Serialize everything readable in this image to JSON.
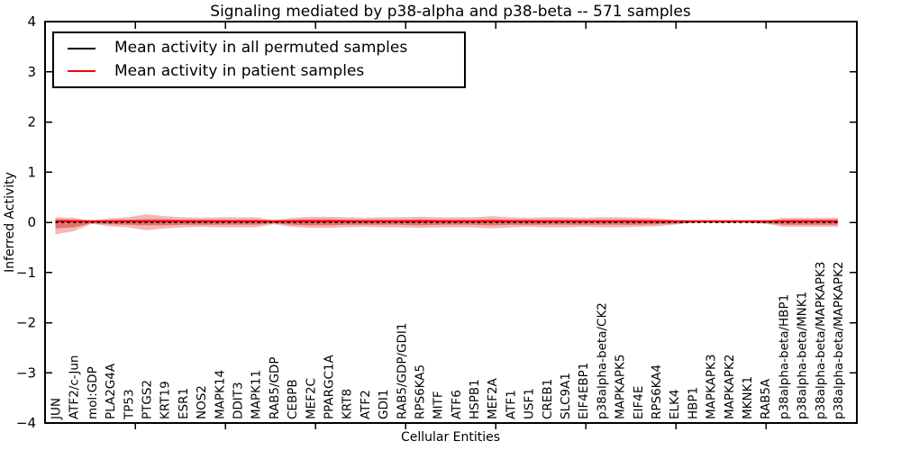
{
  "chart_data": {
    "type": "area",
    "title": "Signaling mediated by p38-alpha and p38-beta -- 571 samples",
    "xlabel": "Cellular Entities",
    "ylabel": "Inferred Activity",
    "ylim": [
      -4,
      4
    ],
    "y_ticks": [
      4,
      3,
      2,
      1,
      0,
      -1,
      -2,
      -3,
      -4
    ],
    "grid": false,
    "legend_position": "upper left",
    "colors": {
      "permuted_line": "#000000",
      "patient_line": "#ff0000",
      "outer_band": "#f5b6b6",
      "inner_band": "#e57070",
      "axis": "#000000"
    },
    "categories": [
      "JUN",
      "ATF2/c-Jun",
      "mol:GDP",
      "PLA2G4A",
      "TP53",
      "PTGS2",
      "KRT19",
      "ESR1",
      "NOS2",
      "MAPK14",
      "DDIT3",
      "MAPK11",
      "RAB5/GDP",
      "CEBPB",
      "MEF2C",
      "PPARGC1A",
      "KRT8",
      "ATF2",
      "GDI1",
      "RAB5/GDP/GDI1",
      "RPS6KA5",
      "MITF",
      "ATF6",
      "HSPB1",
      "MEF2A",
      "ATF1",
      "USF1",
      "CREB1",
      "SLC9A1",
      "EIF4EBP1",
      "p38alpha-beta/CK2",
      "MAPKAPK5",
      "EIF4E",
      "RPS6KA4",
      "ELK4",
      "HBP1",
      "MAPKAPK3",
      "MAPKAPK2",
      "MKNK1",
      "RAB5A",
      "p38alpha-beta/HBP1",
      "p38alpha-beta/MNK1",
      "p38alpha-beta/MAPKAPK3",
      "p38alpha-beta/MAPKAPK2"
    ],
    "legend": [
      {
        "label": "Mean activity in all permuted samples",
        "color": "#000000",
        "style": "solid"
      },
      {
        "label": "Mean activity in patient samples",
        "color": "#ff0000",
        "style": "solid"
      }
    ],
    "series": [
      {
        "name": "Mean activity in all permuted samples",
        "color": "#000000",
        "line_style": "dashed",
        "values": [
          0,
          0,
          0,
          0,
          0,
          0,
          0,
          0,
          0,
          0,
          0,
          0,
          0,
          0,
          0,
          0,
          0,
          0,
          0,
          0,
          0,
          0,
          0,
          0,
          0,
          0,
          0,
          0,
          0,
          0,
          0,
          0,
          0,
          0,
          0,
          0,
          0,
          0,
          0,
          0,
          0,
          0,
          0,
          0
        ]
      },
      {
        "name": "Mean activity in patient samples",
        "color": "#ff0000",
        "line_style": "solid",
        "values": [
          0.02,
          0.02,
          0.02,
          0.02,
          0.02,
          0.02,
          0.02,
          0.02,
          0.02,
          0.02,
          0.02,
          0.02,
          0.02,
          0.02,
          0.02,
          0.02,
          0.02,
          0.02,
          0.02,
          0.02,
          0.02,
          0.02,
          0.02,
          0.02,
          0.02,
          0.02,
          0.02,
          0.02,
          0.02,
          0.02,
          0.02,
          0.02,
          0.02,
          0.02,
          0.02,
          0.02,
          0.02,
          0.02,
          0.02,
          0.02,
          0.02,
          0.02,
          0.02,
          0.02
        ]
      }
    ],
    "bands": [
      {
        "name": "patient-activity-outer-band",
        "color": "#f5b6b6",
        "upper": [
          0.1,
          0.09,
          0.03,
          0.08,
          0.1,
          0.16,
          0.12,
          0.1,
          0.09,
          0.1,
          0.1,
          0.1,
          0.04,
          0.09,
          0.11,
          0.11,
          0.1,
          0.09,
          0.1,
          0.1,
          0.11,
          0.1,
          0.1,
          0.1,
          0.12,
          0.1,
          0.09,
          0.1,
          0.1,
          0.09,
          0.1,
          0.1,
          0.09,
          0.08,
          0.05,
          0.012,
          0.012,
          0.012,
          0.012,
          0.03,
          0.09,
          0.09,
          0.09,
          0.09
        ],
        "lower": [
          -0.24,
          -0.18,
          -0.03,
          -0.08,
          -0.1,
          -0.16,
          -0.12,
          -0.1,
          -0.09,
          -0.1,
          -0.1,
          -0.1,
          -0.04,
          -0.09,
          -0.11,
          -0.11,
          -0.1,
          -0.09,
          -0.1,
          -0.1,
          -0.11,
          -0.1,
          -0.1,
          -0.1,
          -0.12,
          -0.1,
          -0.09,
          -0.1,
          -0.1,
          -0.09,
          -0.1,
          -0.1,
          -0.09,
          -0.08,
          -0.05,
          -0.012,
          -0.012,
          -0.012,
          -0.012,
          -0.03,
          -0.09,
          -0.09,
          -0.09,
          -0.09
        ]
      },
      {
        "name": "patient-activity-inner-band",
        "color": "#e57070",
        "upper": [
          0.06,
          0.05,
          0.02,
          0.04,
          0.05,
          0.06,
          0.06,
          0.05,
          0.05,
          0.05,
          0.05,
          0.05,
          0.02,
          0.05,
          0.06,
          0.06,
          0.05,
          0.05,
          0.05,
          0.05,
          0.06,
          0.05,
          0.05,
          0.05,
          0.06,
          0.05,
          0.05,
          0.05,
          0.05,
          0.05,
          0.05,
          0.05,
          0.05,
          0.04,
          0.03,
          0.008,
          0.008,
          0.008,
          0.008,
          0.015,
          0.05,
          0.05,
          0.05,
          0.05
        ],
        "lower": [
          -0.12,
          -0.1,
          -0.02,
          -0.04,
          -0.05,
          -0.06,
          -0.06,
          -0.05,
          -0.05,
          -0.05,
          -0.05,
          -0.05,
          -0.02,
          -0.05,
          -0.06,
          -0.06,
          -0.05,
          -0.05,
          -0.05,
          -0.05,
          -0.06,
          -0.05,
          -0.05,
          -0.05,
          -0.06,
          -0.05,
          -0.05,
          -0.05,
          -0.05,
          -0.05,
          -0.05,
          -0.05,
          -0.05,
          -0.04,
          -0.03,
          -0.008,
          -0.008,
          -0.008,
          -0.008,
          -0.015,
          -0.05,
          -0.05,
          -0.05,
          -0.05
        ]
      }
    ]
  }
}
